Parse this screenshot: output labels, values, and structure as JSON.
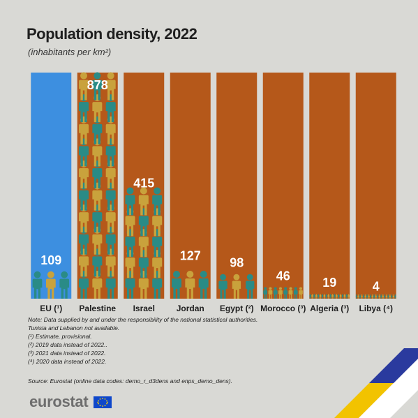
{
  "title": "Population density, 2022",
  "subtitle": "(inhabitants per km²)",
  "colors": {
    "eu_bar": "#3d8fe0",
    "other_bar": "#b5581a",
    "figure_teal": "#2a8b86",
    "figure_gold": "#c9a23c",
    "label": "#ffffff"
  },
  "chart_data": {
    "type": "bar",
    "categories": [
      "EU (¹)",
      "Palestine",
      "Israel",
      "Jordan",
      "Egypt (²)",
      "Morocco (³)",
      "Algeria (³)",
      "Libya (⁴)"
    ],
    "values": [
      109,
      878,
      415,
      127,
      98,
      46,
      19,
      4
    ],
    "value_labels": [
      "109",
      "878",
      "415",
      "127",
      "98",
      "46",
      "19",
      "4"
    ],
    "title": "Population density, 2022",
    "subtitle": "(inhabitants per km²)",
    "ylim": [
      0,
      900
    ],
    "grid": false,
    "legend": "none"
  },
  "notes": [
    "Note: Data supplied by and under the responsibility of the national statistical authorities.",
    "Tunisia and Lebanon not available.",
    "(¹) Estimate, provisional.",
    "(²) 2019 data instead of 2022..",
    "(³) 2021 data instead of 2022.",
    "(⁴) 2020 data instead of 2022."
  ],
  "source": "Source: Eurostat (online data codes: demo_r_d3dens and enps_demo_dens).",
  "logo": {
    "text": "eurostat",
    "flag_icon": "eu-flag-icon"
  }
}
